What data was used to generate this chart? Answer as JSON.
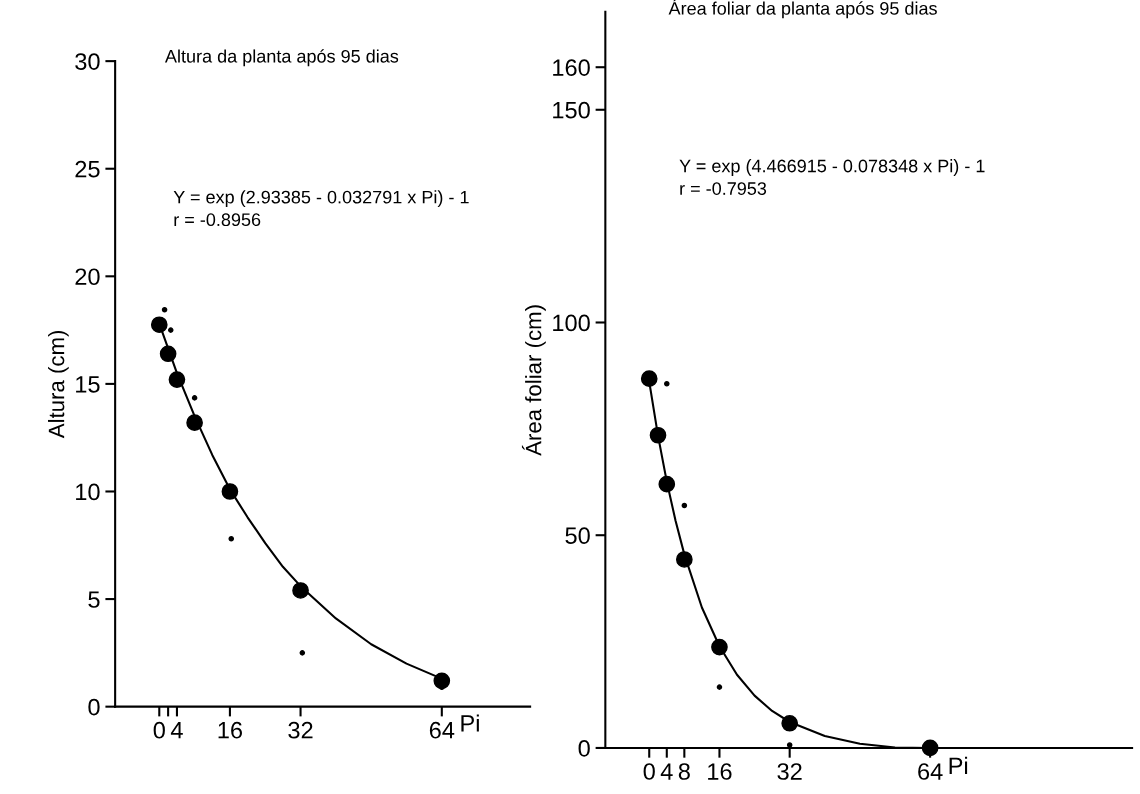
{
  "chart_data": [
    {
      "type": "scatter",
      "title": "Altura da planta após 95 dias",
      "xlabel": "Pi",
      "ylabel": "Altura (cm)",
      "annotations": [
        "Y = exp (2.93385 - 0.032791 x Pi) - 1",
        "r = -0.8956"
      ],
      "xlim": [
        -10,
        84
      ],
      "ylim": [
        0,
        30
      ],
      "xticks": [
        0,
        {
          "value": 2,
          "label": null
        },
        4,
        16,
        32,
        64
      ],
      "yticks": [
        0,
        5,
        10,
        15,
        20,
        25,
        30
      ],
      "series": [
        {
          "marker": "circle",
          "color": "#000000",
          "x": [
            0,
            2,
            4,
            8,
            16,
            32,
            64
          ],
          "values": [
            17.75,
            16.4,
            15.2,
            13.2,
            10.0,
            5.4,
            1.2
          ]
        },
        {
          "marker": "circle",
          "color": "#000000",
          "x": [
            1.2,
            2.6,
            8,
            16.3,
            32.4,
            64
          ],
          "values": [
            18.45,
            17.5,
            14.35,
            7.8,
            2.5,
            0.9
          ]
        },
        {
          "type": "line",
          "color": "#000000",
          "x": [
            0,
            4,
            8,
            12,
            16,
            20,
            24,
            28,
            32,
            40,
            48,
            56,
            64
          ],
          "values": [
            17.8,
            15.5,
            13.5,
            11.7,
            10.1,
            8.8,
            7.6,
            6.5,
            5.6,
            4.1,
            2.9,
            2.0,
            1.3
          ]
        }
      ]
    },
    {
      "type": "scatter",
      "title": "Área foliar da planta após 95 dias",
      "xlabel": "Pi",
      "ylabel": "Área foliar (cm)",
      "annotations": [
        "Y = exp (4.466915 - 0.078348 x Pi) - 1",
        "r = -0.7953"
      ],
      "xlim": [
        -10,
        110
      ],
      "ylim": [
        0,
        173
      ],
      "xticks": [
        0,
        4,
        8,
        16,
        32,
        64
      ],
      "yticks": [
        0,
        50,
        100,
        150,
        160
      ],
      "series": [
        {
          "marker": "circle",
          "color": "#000000",
          "x": [
            0,
            2,
            4,
            8,
            16,
            32,
            64
          ],
          "values": [
            86.8,
            73.5,
            62,
            44.3,
            23.7,
            5.8,
            0
          ]
        },
        {
          "marker": "circle",
          "color": "#000000",
          "x": [
            4,
            8,
            16,
            32
          ],
          "values": [
            85.6,
            57,
            14.3,
            0.7
          ]
        },
        {
          "type": "line",
          "color": "#000000",
          "x": [
            0,
            2,
            4,
            6,
            8,
            12,
            16,
            20,
            24,
            28,
            32,
            40,
            48,
            56,
            64,
            80,
            96,
            110
          ],
          "values": [
            86.1,
            73.4,
            62.6,
            53.4,
            45.5,
            33.0,
            23.9,
            17.2,
            12.3,
            8.7,
            6.1,
            2.8,
            1.0,
            0.1,
            0,
            0,
            0,
            0
          ]
        }
      ]
    }
  ]
}
